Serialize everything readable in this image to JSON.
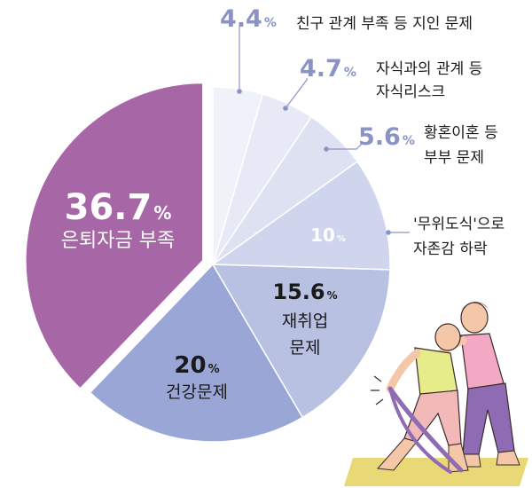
{
  "chart_data": {
    "type": "pie",
    "title": "",
    "slices": [
      {
        "id": "retire",
        "pct": "36.7",
        "value": 36.7,
        "label": [
          "은퇴자금 부족"
        ],
        "color": "#a766a5"
      },
      {
        "id": "health",
        "pct": "20",
        "value": 20,
        "label": [
          "건강문제"
        ],
        "color": "#9aa6d6"
      },
      {
        "id": "reemploy",
        "pct": "15.6",
        "value": 15.6,
        "label": [
          "재취업",
          "문제"
        ],
        "color": "#b9c1e3"
      },
      {
        "id": "idle",
        "pct": "10",
        "value": 10,
        "label": [
          "'무위도식'으로",
          "자존감 하락"
        ],
        "color": "#cfd5ed"
      },
      {
        "id": "divorce",
        "pct": "5.6",
        "value": 5.6,
        "label": [
          "황혼이혼 등",
          "부부 문제"
        ],
        "color": "#dde1f2"
      },
      {
        "id": "children",
        "pct": "4.7",
        "value": 4.7,
        "label": [
          "자식과의 관계 등",
          "자식리스크"
        ],
        "color": "#e7eaf6"
      },
      {
        "id": "friends",
        "pct": "4.4",
        "value": 4.4,
        "label": [
          "친구 관계 부족 등 지인 문제"
        ],
        "color": "#f0f2fa"
      }
    ]
  },
  "colors": {
    "callout_number": "#8b93c5",
    "callout_line": "#8b93c5",
    "inside_text_light": "#ffffff",
    "inside_text_dark": "#1a1a1a"
  },
  "percent_sign": "%",
  "illustration": {
    "icon": "exercise-resistance-band-icon"
  }
}
